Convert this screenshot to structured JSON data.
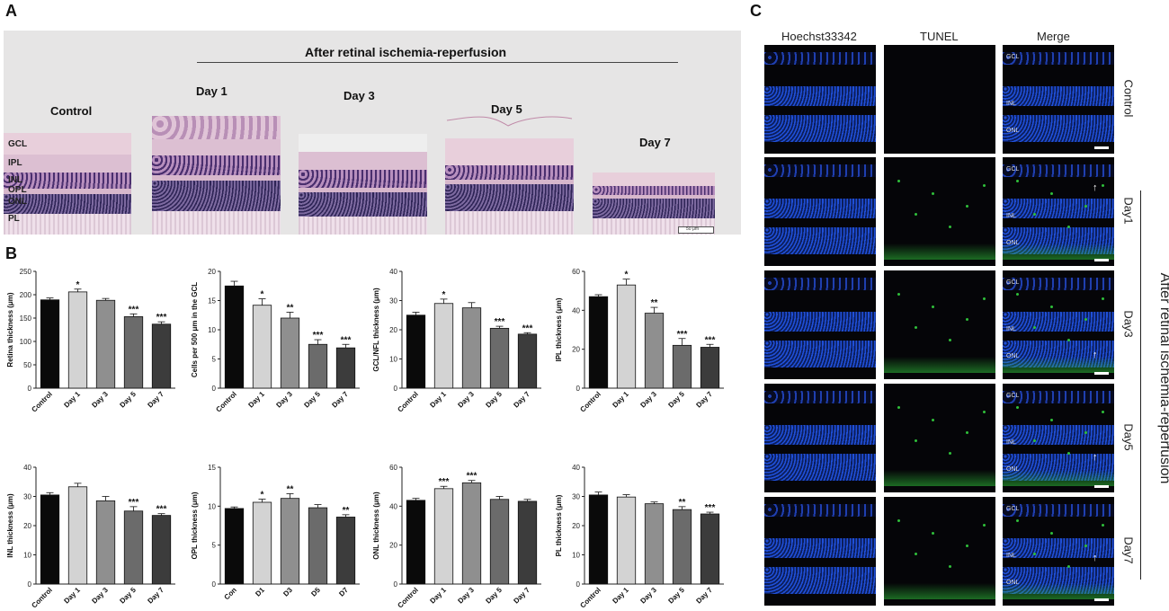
{
  "panels": {
    "a": "A",
    "b": "B",
    "c": "C"
  },
  "histology": {
    "group_title": "After retinal ischemia-reperfusion",
    "sections": [
      "Control",
      "Day 1",
      "Day 3",
      "Day 5",
      "Day 7"
    ],
    "layers": [
      "GCL",
      "IPL",
      "INL",
      "OPL",
      "ONL",
      "PL"
    ],
    "scale_bar": "50 μm"
  },
  "fluorescence": {
    "columns": [
      "Hoechst33342",
      "TUNEL",
      "Merge"
    ],
    "rows": [
      "Control",
      "Day1",
      "Day3",
      "Day5",
      "Day7"
    ],
    "layer_marks": {
      "Control": [
        "GCL",
        "INL",
        "ONL"
      ],
      "Day1": [
        "GCL",
        "INL",
        "ONL"
      ],
      "Day3": [
        "GCL",
        "INL",
        "ONL"
      ],
      "Day5": [
        "GCL",
        "INL",
        "ONL"
      ],
      "Day7": [
        "GCL",
        "INL",
        "ONL"
      ]
    },
    "side_title": "After retinal ischemia-reperfusion",
    "colors": {
      "nuclei": "#1f4fd8",
      "tunel": "#2fbf3a"
    }
  },
  "chart_data": [
    {
      "type": "bar",
      "ylabel": "Retina thickness (μm)",
      "categories": [
        "Control",
        "Day 1",
        "Day 3",
        "Day 5",
        "Day 7"
      ],
      "values": [
        189,
        206,
        188,
        153,
        137
      ],
      "errors": [
        4,
        6,
        4,
        6,
        5
      ],
      "significance": [
        "",
        "*",
        "",
        "***",
        "***"
      ],
      "ylim": [
        0,
        250
      ],
      "yticks": [
        0,
        50,
        100,
        150,
        200,
        250
      ]
    },
    {
      "type": "bar",
      "ylabel": "Cells per 500 μm in the GCL",
      "categories": [
        "Control",
        "Day 1",
        "Day 3",
        "Day 5",
        "Day 7"
      ],
      "values": [
        17.5,
        14.2,
        12.0,
        7.5,
        6.9
      ],
      "errors": [
        0.8,
        1.1,
        1.0,
        0.8,
        0.6
      ],
      "significance": [
        "",
        "*",
        "**",
        "***",
        "***"
      ],
      "ylim": [
        0,
        20
      ],
      "yticks": [
        0,
        5,
        10,
        15,
        20
      ]
    },
    {
      "type": "bar",
      "ylabel": "GCL/NFL thickness (μm)",
      "categories": [
        "Control",
        "Day 1",
        "Day 3",
        "Day 5",
        "Day 7"
      ],
      "values": [
        25,
        29,
        27.5,
        20.5,
        18.5
      ],
      "errors": [
        1,
        1.5,
        1.8,
        0.7,
        0.5
      ],
      "significance": [
        "",
        "*",
        "",
        "***",
        "***"
      ],
      "ylim": [
        0,
        40
      ],
      "yticks": [
        0,
        10,
        20,
        30,
        40
      ]
    },
    {
      "type": "bar",
      "ylabel": "IPL thickness (μm)",
      "categories": [
        "Control",
        "Day 1",
        "Day 3",
        "Day 5",
        "Day 7"
      ],
      "values": [
        47,
        53,
        38.5,
        22,
        21
      ],
      "errors": [
        1,
        3,
        3,
        3.5,
        1.5
      ],
      "significance": [
        "",
        "*",
        "**",
        "***",
        "***"
      ],
      "ylim": [
        0,
        60
      ],
      "yticks": [
        0,
        20,
        40,
        60
      ]
    },
    {
      "type": "bar",
      "ylabel": "INL thickness (μm)",
      "categories": [
        "Control",
        "Day 1",
        "Day 3",
        "Day 5",
        "Day 7"
      ],
      "values": [
        30.5,
        33.3,
        28.5,
        25,
        23.5
      ],
      "errors": [
        0.8,
        1.2,
        1.5,
        1.5,
        0.6
      ],
      "significance": [
        "",
        "",
        "",
        "***",
        "***"
      ],
      "ylim": [
        0,
        40
      ],
      "yticks": [
        0,
        10,
        20,
        30,
        40
      ]
    },
    {
      "type": "bar",
      "ylabel": "OPL thickness (μm)",
      "categories": [
        "Con",
        "D1",
        "D3",
        "D5",
        "D7"
      ],
      "values": [
        9.7,
        10.5,
        11,
        9.8,
        8.6
      ],
      "errors": [
        0.2,
        0.4,
        0.6,
        0.4,
        0.3
      ],
      "significance": [
        "",
        "*",
        "**",
        "",
        "**"
      ],
      "ylim": [
        0,
        15
      ],
      "yticks": [
        0,
        5,
        10,
        15
      ]
    },
    {
      "type": "bar",
      "ylabel": "ONL thickness (μm)",
      "categories": [
        "Control",
        "Day 1",
        "Day 3",
        "Day 5",
        "Day 7"
      ],
      "values": [
        43,
        49,
        52,
        43.5,
        42.5
      ],
      "errors": [
        1,
        1.2,
        1.2,
        1.5,
        1
      ],
      "significance": [
        "",
        "***",
        "***",
        "",
        ""
      ],
      "ylim": [
        0,
        60
      ],
      "yticks": [
        0,
        20,
        40,
        60
      ]
    },
    {
      "type": "bar",
      "ylabel": "PL thickness (μm)",
      "categories": [
        "Control",
        "Day 1",
        "Day 3",
        "Day 5",
        "Day 7"
      ],
      "values": [
        30.5,
        29.8,
        27.5,
        25.5,
        24
      ],
      "errors": [
        1,
        0.8,
        0.6,
        1,
        0.6
      ],
      "significance": [
        "",
        "",
        "",
        "**",
        "***"
      ],
      "ylim": [
        0,
        40
      ],
      "yticks": [
        0,
        10,
        20,
        30,
        40
      ]
    }
  ],
  "bar_colors": [
    "#0a0a0a",
    "#d3d3d3",
    "#8f8f8f",
    "#6b6b6b",
    "#3c3c3c"
  ]
}
